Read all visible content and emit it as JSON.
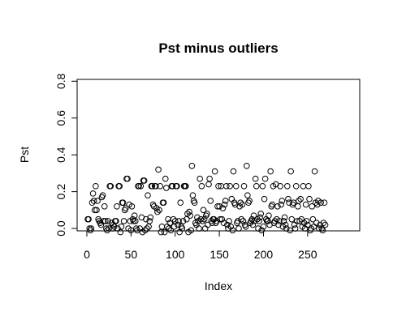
{
  "chart_data": {
    "type": "scatter",
    "title": "Pst minus outliers",
    "xlabel": "Index",
    "ylabel": "Pst",
    "xlim": [
      -11,
      309
    ],
    "ylim": [
      -0.013,
      0.81
    ],
    "xticks": [
      0,
      50,
      100,
      150,
      200,
      250
    ],
    "yticks": [
      {
        "value": 0,
        "label": "0.0"
      },
      0.2,
      0.4,
      0.6,
      0.8
    ],
    "color": "#000000",
    "x": [
      1,
      2,
      3,
      4,
      5,
      6,
      7,
      8,
      9,
      10,
      11,
      12,
      13,
      14,
      15,
      16,
      17,
      18,
      19,
      20,
      21,
      22,
      23,
      24,
      25,
      26,
      27,
      28,
      29,
      30,
      31,
      32,
      33,
      34,
      35,
      36,
      37,
      38,
      39,
      40,
      41,
      42,
      43,
      44,
      45,
      46,
      47,
      48,
      49,
      50,
      51,
      52,
      53,
      54,
      55,
      56,
      57,
      58,
      59,
      60,
      61,
      62,
      63,
      64,
      65,
      66,
      67,
      68,
      69,
      70,
      71,
      72,
      73,
      74,
      75,
      76,
      77,
      78,
      79,
      80,
      81,
      82,
      83,
      84,
      85,
      86,
      87,
      88,
      89,
      90,
      91,
      92,
      93,
      94,
      95,
      96,
      97,
      98,
      99,
      100,
      101,
      102,
      103,
      104,
      105,
      106,
      107,
      108,
      109,
      110,
      111,
      112,
      113,
      114,
      115,
      116,
      117,
      118,
      119,
      120,
      121,
      122,
      123,
      124,
      125,
      126,
      127,
      128,
      129,
      130,
      131,
      132,
      133,
      134,
      135,
      136,
      137,
      138,
      139,
      140,
      141,
      142,
      143,
      144,
      145,
      146,
      147,
      148,
      149,
      150,
      151,
      152,
      153,
      154,
      155,
      156,
      157,
      158,
      159,
      160,
      161,
      162,
      163,
      164,
      165,
      166,
      167,
      168,
      169,
      170,
      171,
      172,
      173,
      174,
      175,
      176,
      177,
      178,
      179,
      180,
      181,
      182,
      183,
      184,
      185,
      186,
      187,
      188,
      189,
      190,
      191,
      192,
      193,
      194,
      195,
      196,
      197,
      198,
      199,
      200,
      201,
      202,
      203,
      204,
      205,
      206,
      207,
      208,
      209,
      210,
      211,
      212,
      213,
      214,
      215,
      216,
      217,
      218,
      219,
      220,
      221,
      222,
      223,
      224,
      225,
      226,
      227,
      228,
      229,
      230,
      231,
      232,
      233,
      234,
      235,
      236,
      237,
      238,
      239,
      240,
      241,
      242,
      243,
      244,
      245,
      246,
      247,
      248,
      249,
      250,
      251,
      252,
      253,
      254,
      255,
      256,
      257,
      258,
      259,
      260,
      261,
      262,
      263,
      264,
      265,
      266,
      267,
      268,
      269,
      270
    ],
    "values": [
      0.05,
      0.05,
      0.0,
      -0.01,
      0.0,
      0.14,
      0.19,
      0.15,
      0.1,
      0.23,
      0.1,
      0.15,
      0.05,
      0.04,
      0.03,
      0.02,
      0.17,
      0.18,
      0.04,
      0.12,
      0.04,
      0.0,
      -0.01,
      0.04,
      0.0,
      0.23,
      0.23,
      0.03,
      0.0,
      0.02,
      0.01,
      0.04,
      0.04,
      0.12,
      0.0,
      0.23,
      0.23,
      -0.02,
      0.01,
      0.14,
      0.14,
      0.04,
      0.1,
      0.11,
      0.27,
      0.27,
      0.0,
      0.13,
      0.04,
      -0.01,
      0.12,
      0.05,
      0.04,
      0.07,
      0.04,
      0.0,
      -0.01,
      0.23,
      0.23,
      0.0,
      0.23,
      0.06,
      -0.02,
      0.26,
      0.26,
      -0.01,
      0.05,
      0.0,
      0.18,
      0.01,
      0.04,
      0.06,
      0.23,
      0.23,
      0.13,
      0.12,
      0.23,
      0.23,
      0.11,
      0.09,
      0.32,
      0.1,
      0.23,
      -0.02,
      0.01,
      0.14,
      0.14,
      -0.02,
      0.27,
      0.22,
      0.01,
      0.05,
      0.0,
      0.03,
      -0.01,
      0.23,
      0.23,
      0.05,
      0.01,
      0.04,
      0.23,
      0.23,
      0.02,
      0.04,
      -0.02,
      0.14,
      0.01,
      0.0,
      0.04,
      0.23,
      0.23,
      0.23,
      0.05,
      0.08,
      -0.02,
      0.09,
      0.07,
      -0.01,
      0.34,
      0.18,
      0.15,
      0.14,
      0.03,
      0.02,
      0.06,
      0.04,
      0.0,
      0.27,
      0.05,
      0.23,
      0.04,
      0.1,
      0.05,
      0.0,
      0.07,
      0.08,
      0.02,
      0.24,
      0.27,
      0.15,
      0.04,
      0.03,
      0.05,
      0.05,
      0.31,
      0.03,
      0.04,
      0.12,
      0.23,
      0.12,
      0.05,
      0.23,
      0.05,
      0.11,
      0.03,
      0.13,
      0.15,
      0.23,
      0.02,
      0.0,
      0.04,
      0.23,
      0.01,
      0.16,
      -0.01,
      0.31,
      0.14,
      0.13,
      0.23,
      0.03,
      0.04,
      0.0,
      0.12,
      0.14,
      0.05,
      0.13,
      0.04,
      0.23,
      0.02,
      0.01,
      0.34,
      0.18,
      0.14,
      0.15,
      0.03,
      0.04,
      0.05,
      0.02,
      0.07,
      0.04,
      0.27,
      0.23,
      0.05,
      0.0,
      0.04,
      0.06,
      0.08,
      -0.01,
      0.23,
      0.01,
      0.16,
      0.27,
      0.05,
      0.04,
      0.04,
      0.07,
      0.02,
      0.31,
      0.12,
      0.13,
      0.23,
      0.03,
      0.04,
      0.24,
      0.05,
      0.12,
      0.02,
      0.04,
      0.23,
      0.13,
      0.15,
      0.01,
      0.04,
      0.06,
      0.02,
      0.0,
      0.23,
      0.16,
      0.14,
      -0.01,
      0.31,
      0.05,
      0.13,
      0.14,
      0.02,
      0.0,
      0.23,
      0.04,
      0.12,
      0.15,
      0.04,
      0.16,
      0.05,
      0.01,
      0.23,
      0.03,
      0.0,
      0.13,
      0.04,
      0.02,
      0.23,
      0.16,
      -0.01,
      0.0,
      0.12,
      0.05,
      0.01,
      0.31,
      0.14,
      0.03,
      0.13,
      0.15,
      0.0,
      0.02,
      0.14,
      0.0,
      -0.01,
      0.03,
      0.14,
      0.02
    ]
  }
}
